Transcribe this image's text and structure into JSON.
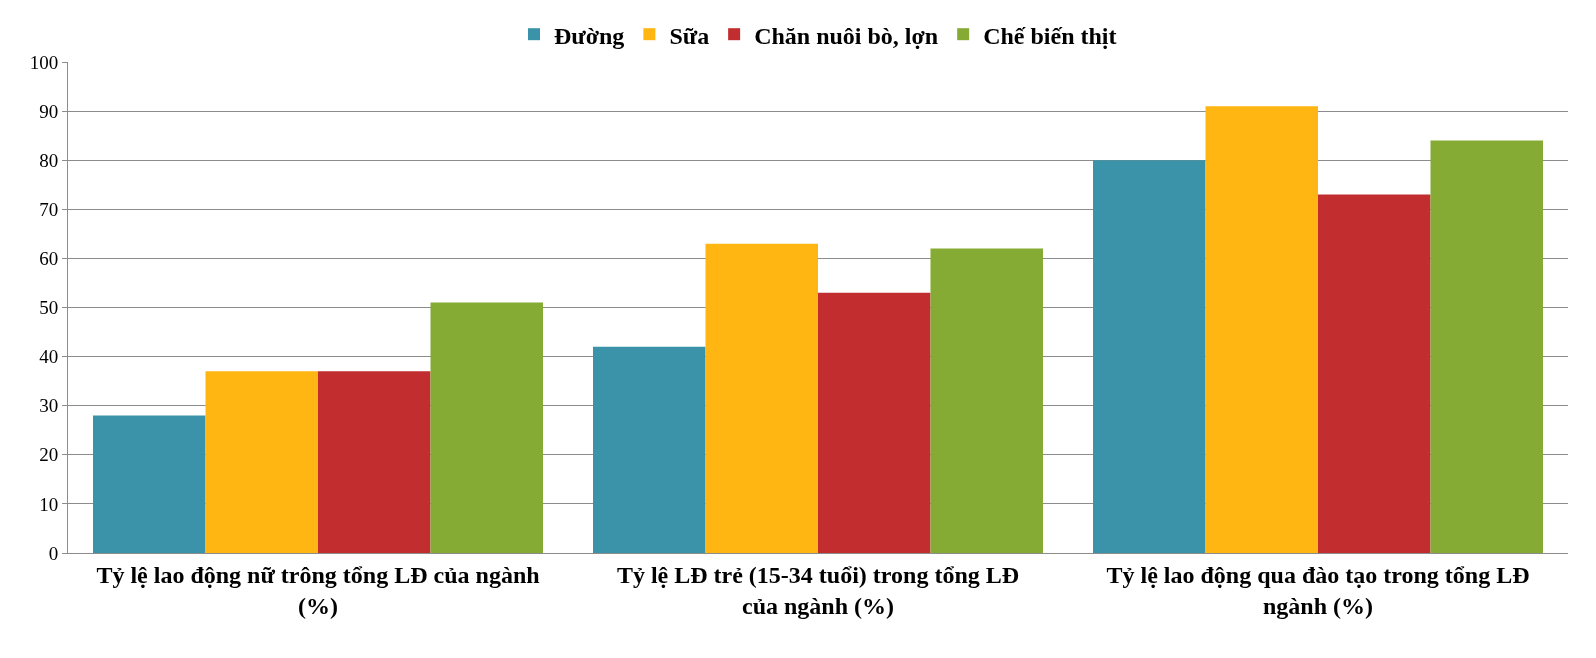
{
  "chart_data": {
    "type": "bar",
    "categories": [
      "Tỷ lệ lao động nữ trông tổng LĐ của ngành (%)",
      "Tỷ lệ LĐ trẻ (15-34 tuổi) trong tổng LĐ của ngành (%)",
      "Tỷ lệ lao động qua đào tạo trong tổng LĐ ngành (%)"
    ],
    "series": [
      {
        "name": "Đường",
        "color": "#3a93a9",
        "values": [
          28,
          42,
          80
        ]
      },
      {
        "name": "Sữa",
        "color": "#ffb612",
        "values": [
          37,
          63,
          91
        ]
      },
      {
        "name": "Chăn nuôi bò, lợn",
        "color": "#c22e2f",
        "values": [
          37,
          53,
          73
        ]
      },
      {
        "name": "Chế biến thịt",
        "color": "#86ab34",
        "values": [
          51,
          62,
          84
        ]
      }
    ],
    "ylim": [
      0,
      100
    ],
    "yticks": [
      0,
      10,
      20,
      30,
      40,
      50,
      60,
      70,
      80,
      90,
      100
    ],
    "grid": "y",
    "legend": "top"
  }
}
